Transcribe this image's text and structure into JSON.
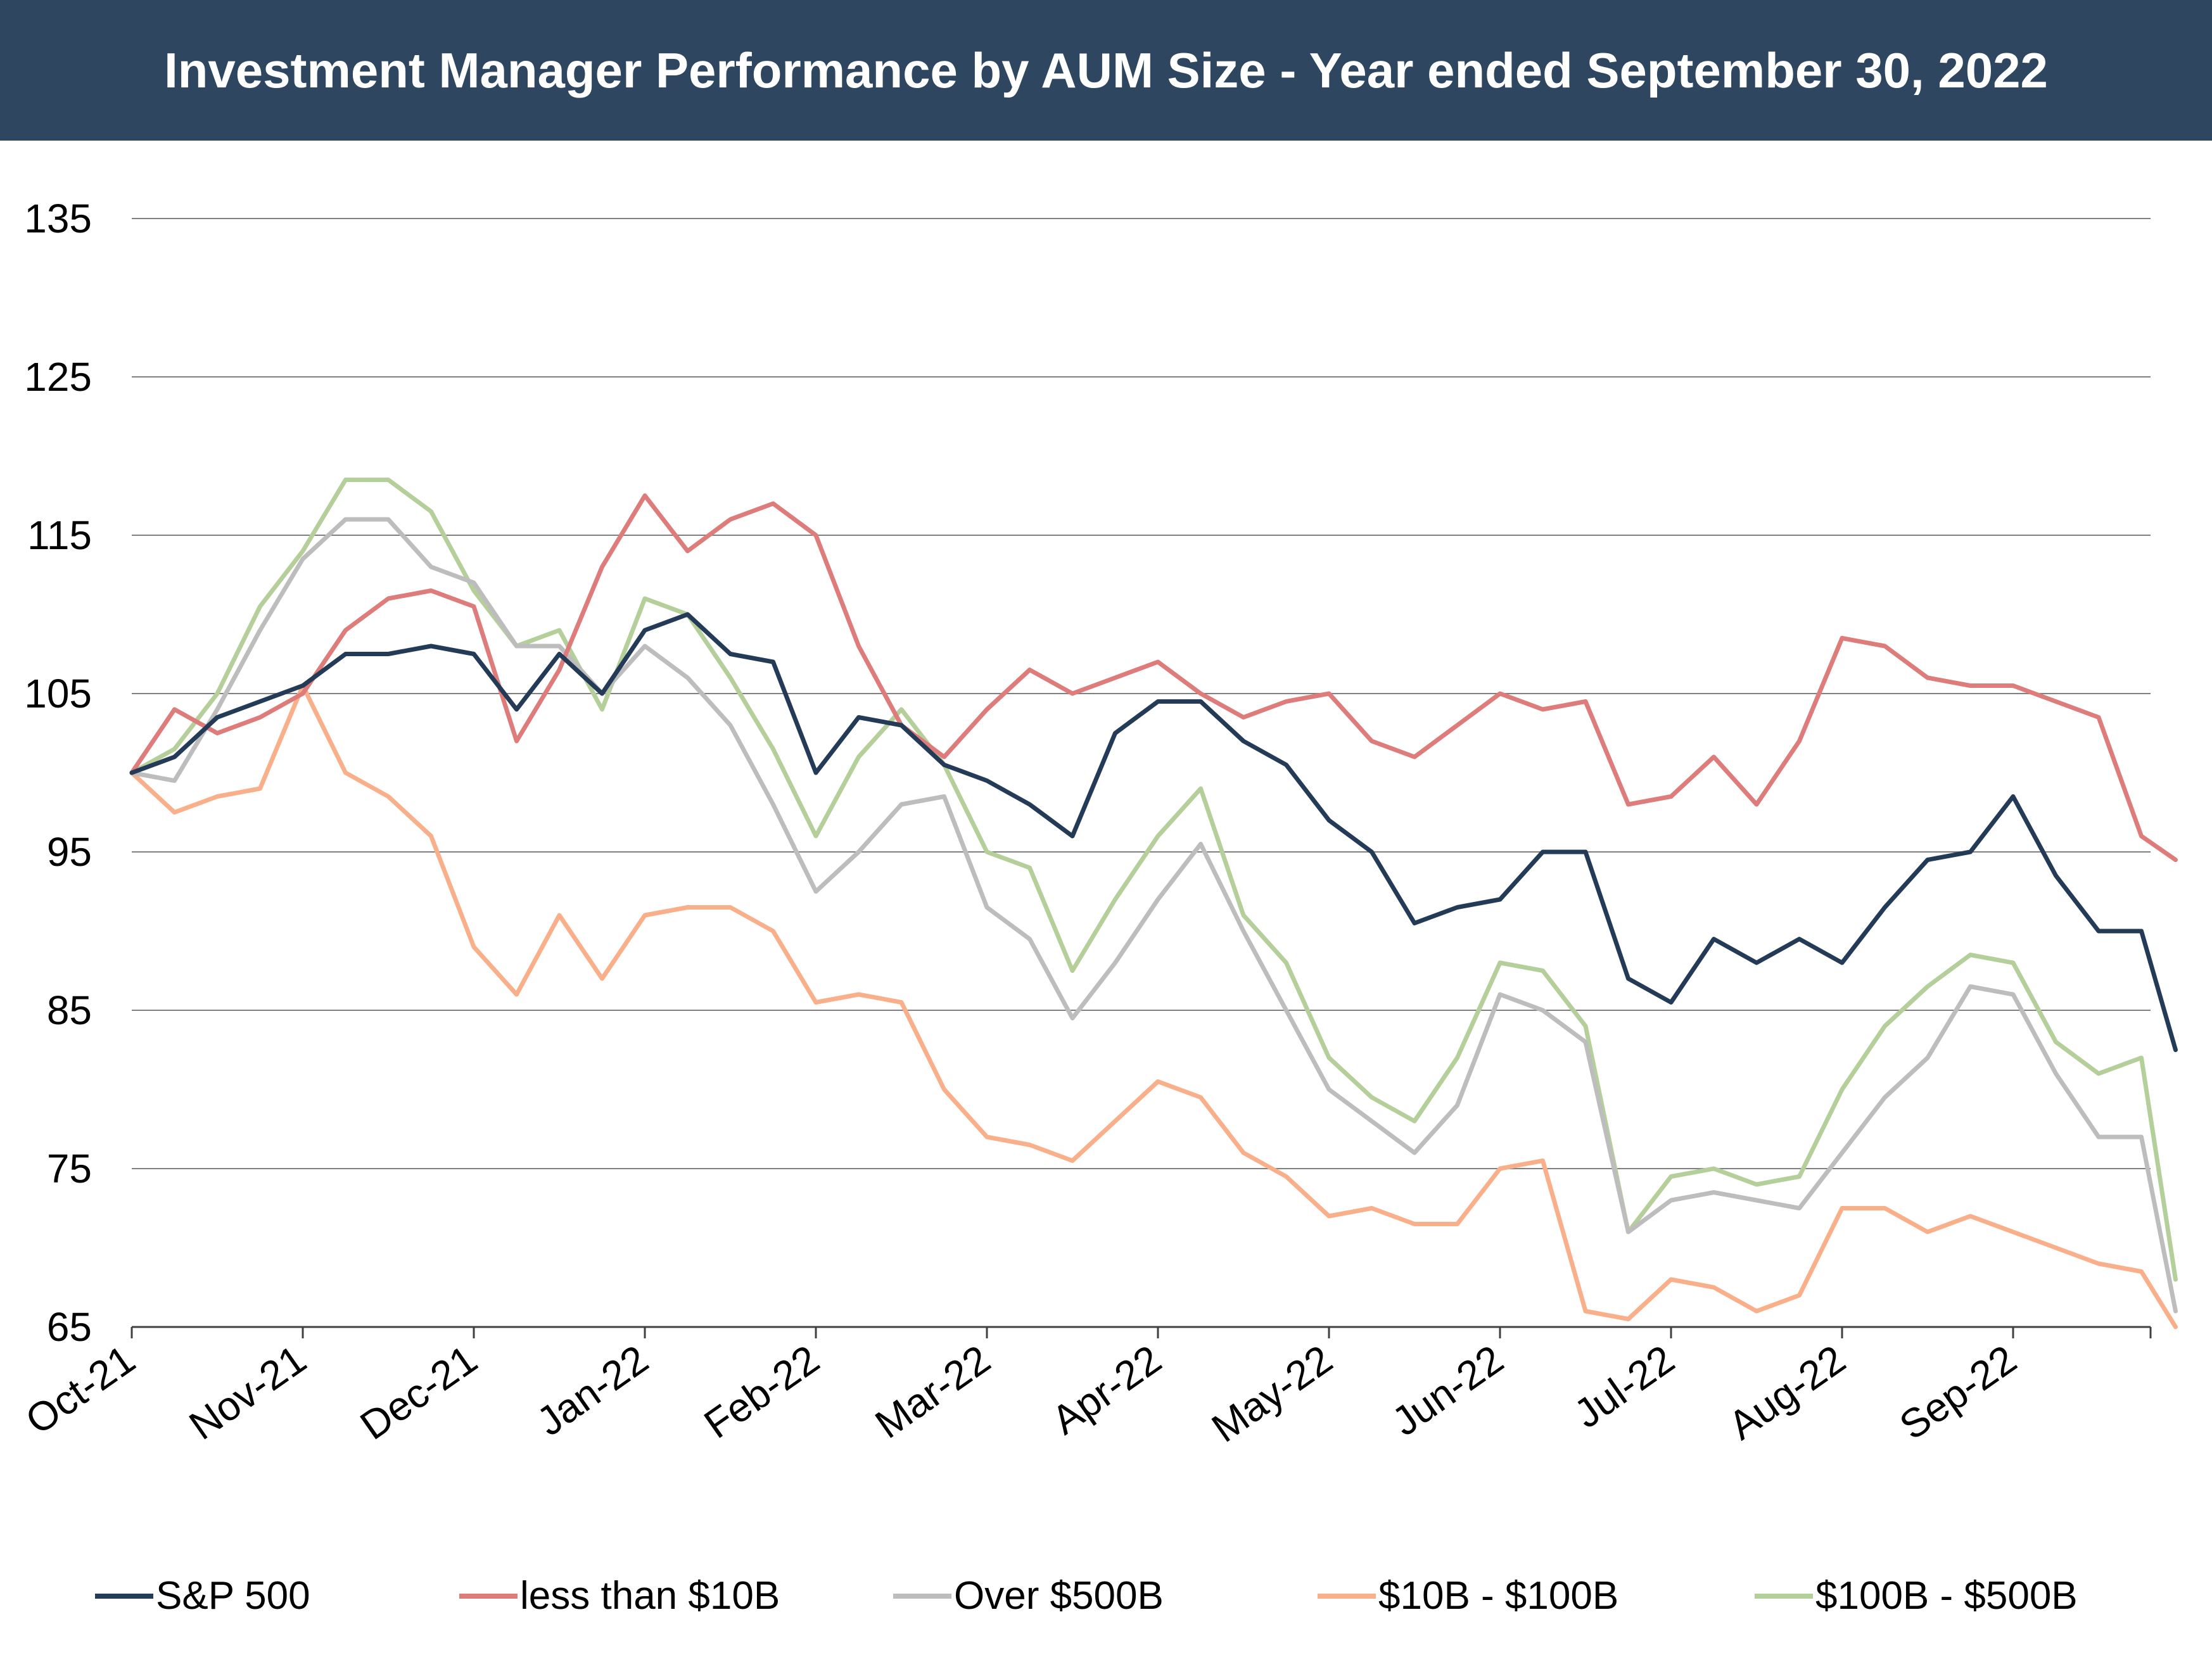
{
  "chart_data": {
    "type": "line",
    "title": "Investment Manager Performance by AUM Size - Year ended September 30, 2022",
    "xlabel": "",
    "ylabel": "",
    "ylim": [
      65,
      135
    ],
    "yticks": [
      65,
      75,
      85,
      95,
      105,
      115,
      125,
      135
    ],
    "ytick_labels": [
      "65",
      "75",
      "85",
      "95",
      "105",
      "115",
      "125",
      "135"
    ],
    "x_categories": [
      "Oct-21",
      "Nov-21",
      "Dec-21",
      "Jan-22",
      "Feb-22",
      "Mar-22",
      "Apr-22",
      "May-22",
      "Jun-22",
      "Jul-22",
      "Aug-22",
      "Sep-22"
    ],
    "x_range": [
      0,
      12
    ],
    "grid": "horizontal",
    "legend_position": "bottom",
    "series": [
      {
        "name": "S&P 500",
        "color": "#243b57",
        "x": [
          0,
          0.25,
          0.5,
          0.75,
          1,
          1.25,
          1.5,
          1.75,
          2,
          2.25,
          2.5,
          2.75,
          3,
          3.25,
          3.5,
          3.75,
          4,
          4.25,
          4.5,
          4.75,
          5,
          5.25,
          5.5,
          5.75,
          6,
          6.25,
          6.5,
          6.75,
          7,
          7.25,
          7.5,
          7.75,
          8,
          8.25,
          8.5,
          8.75,
          9,
          9.25,
          9.5,
          9.75,
          10,
          10.25,
          10.5,
          10.75,
          11,
          11.25,
          11.5,
          11.75,
          11.95
        ],
        "y": [
          100,
          101,
          103.5,
          104.5,
          105.5,
          107.5,
          107.5,
          108,
          107.5,
          104,
          107.5,
          105,
          109,
          110,
          107.5,
          107,
          100,
          103.5,
          103,
          100.5,
          99.5,
          98,
          96,
          102.5,
          104.5,
          104.5,
          102,
          100.5,
          97,
          95,
          90.5,
          91.5,
          92,
          95,
          95,
          87,
          85.5,
          89.5,
          88,
          89.5,
          88,
          91.5,
          94.5,
          95,
          98.5,
          93.5,
          90,
          90,
          82.5
        ]
      },
      {
        "name": "less than $10B",
        "color": "#de7b7b",
        "x": [
          0,
          0.25,
          0.5,
          0.75,
          1,
          1.25,
          1.5,
          1.75,
          2,
          2.25,
          2.5,
          2.75,
          3,
          3.25,
          3.5,
          3.75,
          4,
          4.25,
          4.5,
          4.75,
          5,
          5.25,
          5.5,
          5.75,
          6,
          6.25,
          6.5,
          6.75,
          7,
          7.25,
          7.5,
          7.75,
          8,
          8.25,
          8.5,
          8.75,
          9,
          9.25,
          9.5,
          9.75,
          10,
          10.25,
          10.5,
          10.75,
          11,
          11.25,
          11.5,
          11.75,
          11.95
        ],
        "y": [
          100,
          104,
          102.5,
          103.5,
          105,
          109,
          111,
          111.5,
          110.5,
          102,
          106.5,
          113,
          117.5,
          114,
          116,
          117,
          115,
          108,
          103,
          101,
          104,
          106.5,
          105,
          106,
          107,
          105,
          103.5,
          104.5,
          105,
          102,
          101,
          103,
          105,
          104,
          104.5,
          98,
          98.5,
          101,
          98,
          102,
          108.5,
          108,
          106,
          105.5,
          105.5,
          104.5,
          103.5,
          96,
          94.5
        ]
      },
      {
        "name": "Over $500B",
        "color": "#bdbdbd",
        "x": [
          0,
          0.25,
          0.5,
          0.75,
          1,
          1.25,
          1.5,
          1.75,
          2,
          2.25,
          2.5,
          2.75,
          3,
          3.25,
          3.5,
          3.75,
          4,
          4.25,
          4.5,
          4.75,
          5,
          5.25,
          5.5,
          5.75,
          6,
          6.25,
          6.5,
          6.75,
          7,
          7.25,
          7.5,
          7.75,
          8,
          8.25,
          8.5,
          8.75,
          9,
          9.25,
          9.5,
          9.75,
          10,
          10.25,
          10.5,
          10.75,
          11,
          11.25,
          11.5,
          11.75,
          11.95
        ],
        "y": [
          100,
          99.5,
          104,
          109,
          113.5,
          116,
          116,
          113,
          112,
          108,
          108,
          105,
          108,
          106,
          103,
          98,
          92.5,
          95,
          98,
          98.5,
          91.5,
          89.5,
          84.5,
          88,
          92,
          95.5,
          90,
          85,
          80,
          78,
          76,
          79,
          86,
          85,
          83,
          71,
          73,
          73.5,
          73,
          72.5,
          76,
          79.5,
          82,
          86.5,
          86,
          81,
          77,
          77,
          66
        ]
      },
      {
        "name": "$10B - $100B",
        "color": "#f9b08a",
        "x": [
          0,
          0.25,
          0.5,
          0.75,
          1,
          1.25,
          1.5,
          1.75,
          2,
          2.25,
          2.5,
          2.75,
          3,
          3.25,
          3.5,
          3.75,
          4,
          4.25,
          4.5,
          4.75,
          5,
          5.25,
          5.5,
          5.75,
          6,
          6.25,
          6.5,
          6.75,
          7,
          7.25,
          7.5,
          7.75,
          8,
          8.25,
          8.5,
          8.75,
          9,
          9.25,
          9.5,
          9.75,
          10,
          10.25,
          10.5,
          10.75,
          11,
          11.25,
          11.5,
          11.75,
          11.95
        ],
        "y": [
          100,
          97.5,
          98.5,
          99,
          105.5,
          100,
          98.5,
          96,
          89,
          86,
          91,
          87,
          91,
          91.5,
          91.5,
          90,
          85.5,
          86,
          85.5,
          80,
          77,
          76.5,
          75.5,
          78,
          80.5,
          79.5,
          76,
          74.5,
          72,
          72.5,
          71.5,
          71.5,
          75,
          75.5,
          66,
          65.5,
          68,
          67.5,
          66,
          67,
          72.5,
          72.5,
          71,
          72,
          71,
          70,
          69,
          68.5,
          65
        ]
      },
      {
        "name": "$100B - $500B",
        "color": "#b5cf9b",
        "x": [
          0,
          0.25,
          0.5,
          0.75,
          1,
          1.25,
          1.5,
          1.75,
          2,
          2.25,
          2.5,
          2.75,
          3,
          3.25,
          3.5,
          3.75,
          4,
          4.25,
          4.5,
          4.75,
          5,
          5.25,
          5.5,
          5.75,
          6,
          6.25,
          6.5,
          6.75,
          7,
          7.25,
          7.5,
          7.75,
          8,
          8.25,
          8.5,
          8.75,
          9,
          9.25,
          9.5,
          9.75,
          10,
          10.25,
          10.5,
          10.75,
          11,
          11.25,
          11.5,
          11.75,
          11.95
        ],
        "y": [
          100,
          101.5,
          105,
          110.5,
          114,
          118.5,
          118.5,
          116.5,
          111.5,
          108,
          109,
          104,
          111,
          110,
          106,
          101.5,
          96,
          101,
          104,
          100.5,
          95,
          94,
          87.5,
          92,
          96,
          99,
          91,
          88,
          82,
          79.5,
          78,
          82,
          88,
          87.5,
          84,
          71,
          74.5,
          75,
          74,
          74.5,
          80,
          84,
          86.5,
          88.5,
          88,
          83,
          81,
          82,
          68
        ]
      }
    ]
  }
}
